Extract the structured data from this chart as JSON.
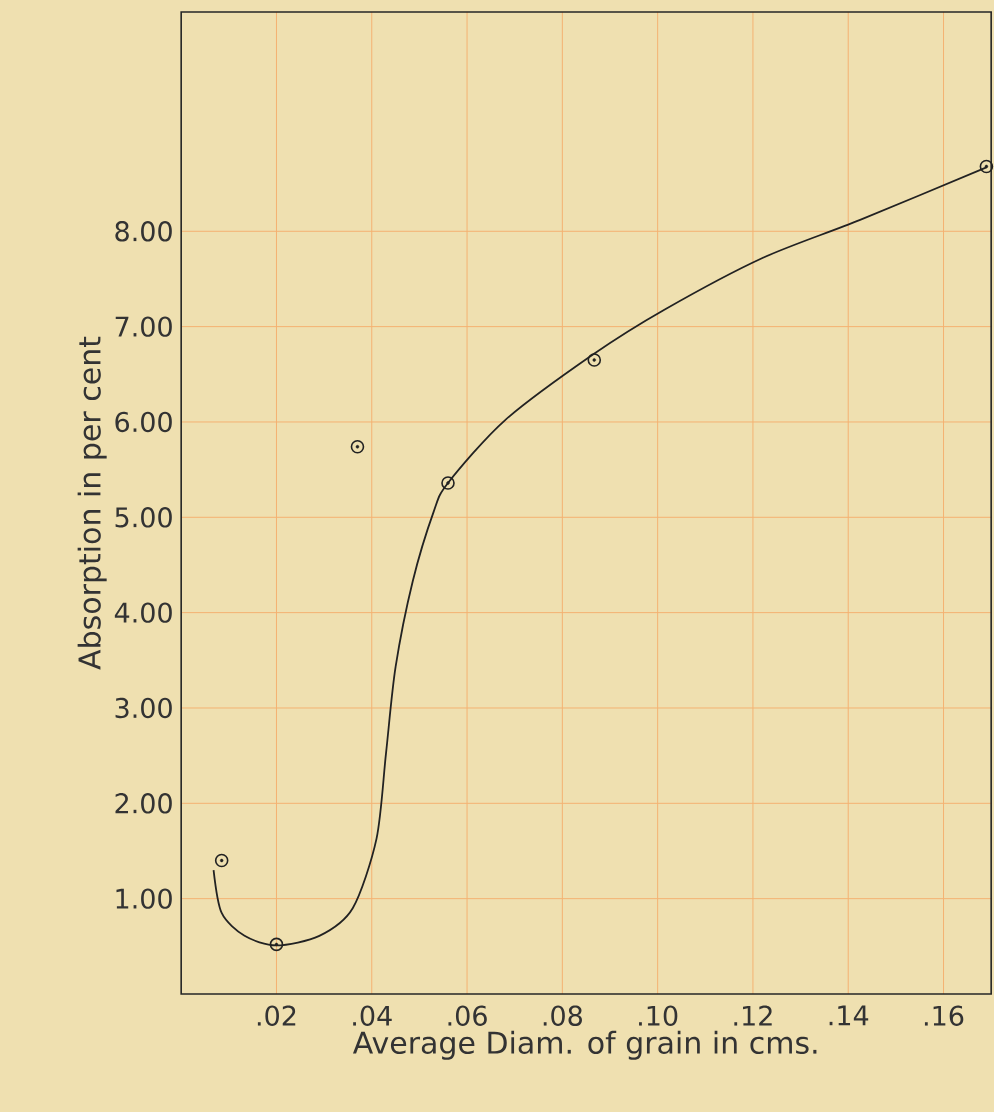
{
  "chart_data": {
    "type": "scatter",
    "xlabel": "Average Diam. of grain in cms.",
    "ylabel": "Absorption in per cent",
    "xlim": [
      0,
      0.17
    ],
    "ylim": [
      0,
      10.3
    ],
    "xticks": [
      {
        "value": 0.02,
        "label": ".02"
      },
      {
        "value": 0.04,
        "label": ".04"
      },
      {
        "value": 0.06,
        "label": ".06"
      },
      {
        "value": 0.08,
        "label": ".08"
      },
      {
        "value": 0.1,
        "label": ".10"
      },
      {
        "value": 0.12,
        "label": ".12"
      },
      {
        "value": 0.14,
        "label": ".14"
      },
      {
        "value": 0.16,
        "label": ".16"
      }
    ],
    "yticks": [
      {
        "value": 1,
        "label": "1.00"
      },
      {
        "value": 2,
        "label": "2.00"
      },
      {
        "value": 3,
        "label": "3.00"
      },
      {
        "value": 4,
        "label": "4.00"
      },
      {
        "value": 5,
        "label": "5.00"
      },
      {
        "value": 6,
        "label": "6.00"
      },
      {
        "value": 7,
        "label": "7.00"
      },
      {
        "value": 8,
        "label": "8.00"
      }
    ],
    "grid": true,
    "series": [
      {
        "type": "line",
        "color": "#222222",
        "x": [
          0.0068,
          0.0085,
          0.0133,
          0.02,
          0.029,
          0.036,
          0.041,
          0.043,
          0.045,
          0.0486,
          0.053,
          0.056,
          0.068,
          0.0865,
          0.1015,
          0.122,
          0.1425,
          0.169
        ],
        "values": [
          1.3,
          0.85,
          0.61,
          0.51,
          0.61,
          0.9,
          1.63,
          2.53,
          3.43,
          4.33,
          5.06,
          5.36,
          6.02,
          6.71,
          7.18,
          7.72,
          8.12,
          8.67
        ]
      },
      {
        "marker": "circle",
        "color": "#222222",
        "x": [
          0.0085,
          0.02,
          0.037,
          0.056,
          0.0867,
          0.169
        ],
        "values": [
          1.4,
          0.52,
          5.74,
          5.36,
          6.65,
          8.68
        ]
      }
    ]
  }
}
